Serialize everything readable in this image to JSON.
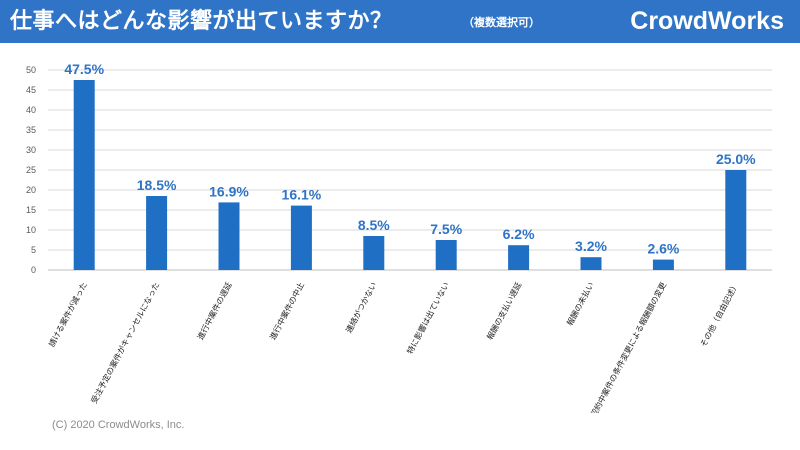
{
  "header": {
    "title": "仕事へはどんな影響が出ていますか？",
    "subtitle": "（複数選択可）",
    "brand": "CrowdWorks"
  },
  "footer": {
    "copyright": "(C) 2020 CrowdWorks, Inc."
  },
  "colors": {
    "bar": "#1f6fc5",
    "header": "#2f74c6",
    "grid": "#d9d9d9"
  },
  "chart_data": {
    "type": "bar",
    "title": "仕事へはどんな影響が出ていますか？",
    "categories": [
      "請ける案件が減った",
      "受注予定の案件がキャンセルになった",
      "進行中案件の遅延",
      "進行中案件の中止",
      "連絡がつかない",
      "特に影響は出ていない",
      "報酬の支払い遅延",
      "報酬の未払い",
      "契約中案件の条件変更による報酬額の変更",
      "その他（自由記述）"
    ],
    "values": [
      47.5,
      18.5,
      16.9,
      16.1,
      8.5,
      7.5,
      6.2,
      3.2,
      2.6,
      25.0
    ],
    "value_labels": [
      "47.5%",
      "18.5%",
      "16.9%",
      "16.1%",
      "8.5%",
      "7.5%",
      "6.2%",
      "3.2%",
      "2.6%",
      "25.0%"
    ],
    "yticks": [
      "0",
      "5",
      "10",
      "15",
      "20",
      "25",
      "30",
      "35",
      "40",
      "45",
      "50"
    ],
    "ylim": [
      0,
      50
    ],
    "grid": true,
    "xlabel": "",
    "ylabel": ""
  }
}
